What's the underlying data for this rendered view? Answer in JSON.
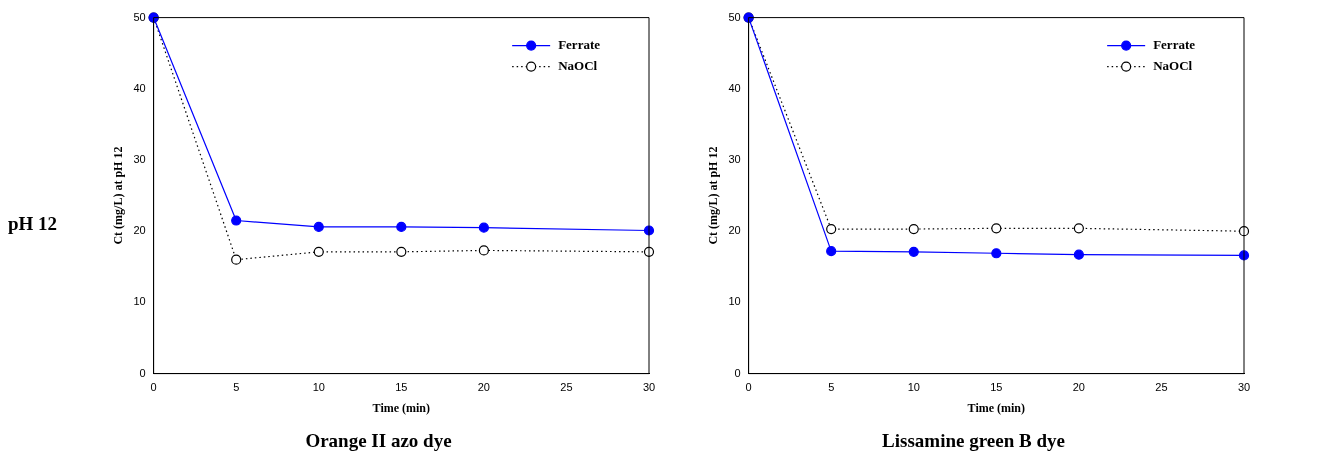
{
  "chart_data": [
    {
      "type": "line",
      "title": "Orange II azo dye",
      "xlabel": "Time (min)",
      "ylabel": "Ct (mg/L) at pH 12",
      "annotations": [
        "pH 12"
      ],
      "x": [
        0,
        5,
        10,
        15,
        20,
        30
      ],
      "xlim": [
        0,
        30
      ],
      "xticks": [
        0,
        5,
        10,
        15,
        20,
        25,
        30
      ],
      "ylim": [
        0,
        50
      ],
      "yticks": [
        0,
        10,
        20,
        30,
        40,
        50
      ],
      "grid": false,
      "legend": "top right",
      "marker": "circle",
      "series": [
        {
          "name": "Ferrate",
          "color": "#0000ff",
          "line_style": "solid",
          "values": [
            50,
            21.5,
            20.6,
            20.6,
            20.5,
            20.1
          ]
        },
        {
          "name": "NaOCl",
          "color": "#000000",
          "line_style": "dotted",
          "values": [
            50,
            16,
            17.1,
            17.1,
            17.3,
            17.1
          ]
        }
      ]
    },
    {
      "type": "line",
      "title": "Lissamine green B dye",
      "xlabel": "Time (min)",
      "ylabel": "Ct (mg/L) at pH 12",
      "x": [
        0,
        5,
        10,
        15,
        20,
        30
      ],
      "xlim": [
        0,
        30
      ],
      "xticks": [
        0,
        5,
        10,
        15,
        20,
        25,
        30
      ],
      "ylim": [
        0,
        50
      ],
      "yticks": [
        0,
        10,
        20,
        30,
        40,
        50
      ],
      "grid": false,
      "legend": "top right",
      "marker": "circle",
      "series": [
        {
          "name": "Ferrate",
          "color": "#0000ff",
          "line_style": "solid",
          "values": [
            50,
            17.2,
            17.1,
            16.9,
            16.7,
            16.6
          ]
        },
        {
          "name": "NaOCl",
          "color": "#000000",
          "line_style": "dotted",
          "values": [
            50,
            20.3,
            20.3,
            20.4,
            20.4,
            20.0
          ]
        }
      ]
    }
  ]
}
